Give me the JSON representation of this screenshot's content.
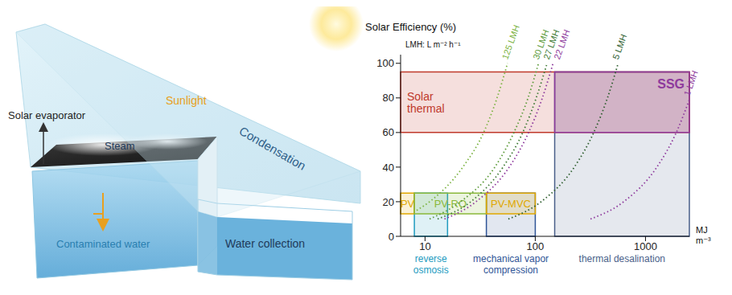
{
  "illustration": {
    "solar_evaporator": "Solar evaporator",
    "sunlight": "Sunlight",
    "steam": "Steam",
    "condensation": "Condensation",
    "contaminated_water": "Contaminated water",
    "water_collection": "Water collection"
  },
  "chart_data": {
    "type": "line",
    "y_label": "Solar Efficiency (%)",
    "x_label": "MJ m⁻³",
    "note": "LMH: L m⁻² h⁻¹",
    "log": "x",
    "xlim": [
      6,
      2500
    ],
    "xticks": [
      10,
      100,
      1000
    ],
    "ylim": [
      0,
      105
    ],
    "yticks": [
      0,
      20,
      40,
      60,
      80,
      100
    ],
    "areas": [
      {
        "label": "Solar thermal",
        "x": [
          6,
          2500
        ],
        "y": [
          60,
          95
        ],
        "color": "#c0392b"
      },
      {
        "label": "SSG",
        "x": [
          150,
          2500
        ],
        "y": [
          60,
          95
        ],
        "color": "#8e3a9d"
      },
      {
        "label": "PV",
        "x": [
          6,
          8
        ],
        "y": [
          13,
          25
        ],
        "color": "#e0a800"
      },
      {
        "label": "PV-RO",
        "x": [
          8,
          36
        ],
        "y": [
          13,
          25
        ],
        "color": "#8ab83a"
      },
      {
        "label": "PV-MVC",
        "x": [
          36,
          100
        ],
        "y": [
          13,
          25
        ],
        "color": "#e0a800"
      }
    ],
    "ranges": [
      {
        "label": "reverse osmosis",
        "x": [
          8,
          16
        ],
        "y": [
          0,
          25
        ],
        "color": "#1e9bbf"
      },
      {
        "label": "mechanical vapor compression",
        "x": [
          36,
          100
        ],
        "y": [
          0,
          25
        ],
        "color": "#2f5597"
      },
      {
        "label": "thermal desalination",
        "x": [
          150,
          2500
        ],
        "y": [
          0,
          95
        ],
        "color": "#4a5f8a"
      }
    ],
    "series": [
      {
        "name": "125 LMH",
        "color": "#7cb342",
        "line_style": "dotted",
        "x": [
          8.4,
          11,
          22,
          34,
          45,
          56
        ],
        "values": [
          15,
          20,
          40,
          60,
          80,
          100
        ]
      },
      {
        "name": "30 LMH",
        "color": "#5d9b3a",
        "line_style": "dotted",
        "x": [
          11,
          21,
          43,
          64,
          86,
          107
        ],
        "values": [
          10,
          20,
          40,
          60,
          80,
          100
        ]
      },
      {
        "name": "27 LMH",
        "color": "#3f7a35",
        "line_style": "dotted",
        "x": [
          13,
          26,
          51,
          77,
          102,
          128
        ],
        "values": [
          10,
          20,
          40,
          60,
          80,
          100
        ]
      },
      {
        "name": "22 LMH",
        "color": "#8e3a9d",
        "line_style": "dotted",
        "x": [
          15,
          29,
          58,
          87,
          116,
          145
        ],
        "values": [
          10,
          20,
          40,
          60,
          80,
          100
        ]
      },
      {
        "name": "5 LMH",
        "color": "#2e5e2e",
        "line_style": "dotted",
        "x": [
          57,
          113,
          226,
          339,
          452,
          565
        ],
        "values": [
          10,
          20,
          40,
          60,
          80,
          100
        ]
      },
      {
        "name": "1 LMH",
        "color": "#8e3a9d",
        "line_style": "dotted",
        "x": [
          317,
          634,
          1268,
          1902,
          2500
        ],
        "values": [
          10,
          20,
          40,
          60,
          79
        ]
      }
    ]
  }
}
